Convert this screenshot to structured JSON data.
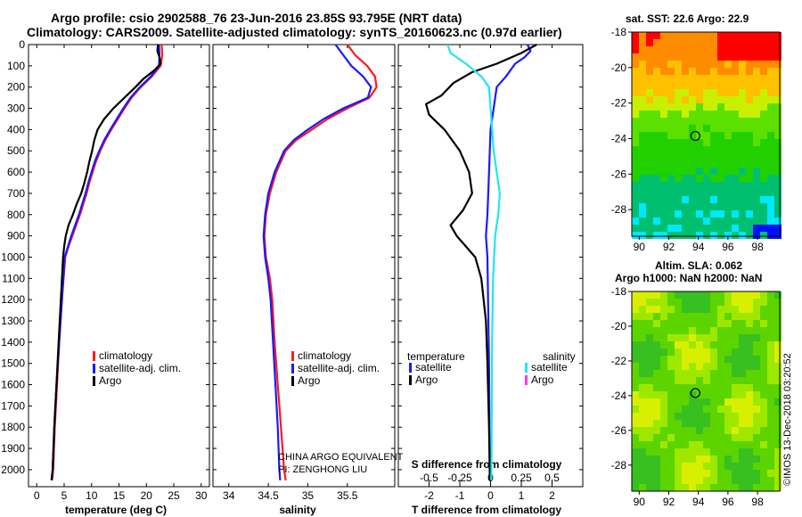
{
  "header": {
    "line1": "Argo profile: csio 2902588_76 23-Jun-2016 23.85S 93.795E (NRT data)",
    "line2": "Climatology: CARS2009. Satellite-adjusted climatology: synTS_20160623.nc (0.97d earlier)"
  },
  "colors": {
    "climatology": "#ff1a1a",
    "satellite": "#1a1aff",
    "argo": "#000000",
    "sat_salinity": "#22e5ee",
    "argo_salinity": "#ff33ff"
  },
  "chart_data": [
    {
      "id": "temperature",
      "type": "line",
      "xlabel": "temperature (deg C)",
      "ylabel": "",
      "xlim": [
        -1.5,
        31.5
      ],
      "ylim": [
        2080,
        0
      ],
      "xticks": [
        0,
        5,
        10,
        15,
        20,
        25,
        30
      ],
      "yticks": [
        0,
        100,
        200,
        300,
        400,
        500,
        600,
        700,
        800,
        900,
        1000,
        1100,
        1200,
        1300,
        1400,
        1500,
        1600,
        1700,
        1800,
        1900,
        2000
      ],
      "legend": {
        "items": [
          "climatology",
          "satellite-adj. clim.",
          "Argo"
        ]
      },
      "series": [
        {
          "name": "climatology",
          "color": "#ff1a1a",
          "points": [
            [
              22.8,
              0
            ],
            [
              22.9,
              50
            ],
            [
              22.6,
              100
            ],
            [
              21,
              150
            ],
            [
              19,
              200
            ],
            [
              17.3,
              250
            ],
            [
              16,
              300
            ],
            [
              14.8,
              350
            ],
            [
              13.6,
              400
            ],
            [
              12.5,
              450
            ],
            [
              11.6,
              500
            ],
            [
              10.8,
              550
            ],
            [
              10.2,
              600
            ],
            [
              9.6,
              650
            ],
            [
              9.1,
              700
            ],
            [
              8.5,
              750
            ],
            [
              7.9,
              800
            ],
            [
              7.2,
              850
            ],
            [
              6.5,
              900
            ],
            [
              5.8,
              950
            ],
            [
              5.2,
              1000
            ],
            [
              4.6,
              1200
            ],
            [
              4.1,
              1400
            ],
            [
              3.7,
              1600
            ],
            [
              3.3,
              1800
            ],
            [
              3,
              2000
            ],
            [
              2.8,
              2050
            ]
          ]
        },
        {
          "name": "satellite-adj. clim.",
          "color": "#1a1aff",
          "points": [
            [
              22.3,
              0
            ],
            [
              22.4,
              50
            ],
            [
              22.3,
              100
            ],
            [
              20.8,
              150
            ],
            [
              18.8,
              200
            ],
            [
              17.1,
              250
            ],
            [
              15.8,
              300
            ],
            [
              14.6,
              350
            ],
            [
              13.4,
              400
            ],
            [
              12.3,
              450
            ],
            [
              11.4,
              500
            ],
            [
              10.6,
              550
            ],
            [
              10,
              600
            ],
            [
              9.4,
              650
            ],
            [
              8.9,
              700
            ],
            [
              8.3,
              750
            ],
            [
              7.7,
              800
            ],
            [
              7,
              850
            ],
            [
              6.3,
              900
            ],
            [
              5.7,
              950
            ],
            [
              5.1,
              1000
            ],
            [
              4.6,
              1200
            ],
            [
              4.1,
              1400
            ],
            [
              3.6,
              1600
            ],
            [
              3.2,
              1800
            ],
            [
              2.9,
              2000
            ],
            [
              2.7,
              2050
            ]
          ]
        },
        {
          "name": "Argo",
          "color": "#000000",
          "points": [
            [
              22.1,
              0
            ],
            [
              22,
              30
            ],
            [
              22.4,
              60
            ],
            [
              22.6,
              90
            ],
            [
              21.5,
              120
            ],
            [
              19.5,
              160
            ],
            [
              18,
              200
            ],
            [
              16,
              250
            ],
            [
              14,
              300
            ],
            [
              12.3,
              350
            ],
            [
              11.1,
              400
            ],
            [
              10.5,
              450
            ],
            [
              10.1,
              500
            ],
            [
              9.6,
              550
            ],
            [
              9.2,
              600
            ],
            [
              8.7,
              650
            ],
            [
              8.1,
              700
            ],
            [
              7.3,
              750
            ],
            [
              6.6,
              800
            ],
            [
              5.8,
              850
            ],
            [
              5.3,
              900
            ],
            [
              5,
              950
            ],
            [
              4.8,
              1000
            ],
            [
              4.4,
              1200
            ],
            [
              4,
              1400
            ],
            [
              3.6,
              1600
            ],
            [
              3.2,
              1800
            ],
            [
              2.9,
              2000
            ],
            [
              2.7,
              2050
            ]
          ]
        }
      ]
    },
    {
      "id": "salinity",
      "type": "line",
      "xlabel": "salinity",
      "ylabel": "",
      "xlim": [
        33.8,
        36.1
      ],
      "ylim": [
        2080,
        0
      ],
      "xticks": [
        34,
        34.5,
        35,
        35.5
      ],
      "legend": {
        "items": [
          "climatology",
          "satellite-adj. clim.",
          "Argo"
        ]
      },
      "annotations": [
        "CHINA ARGO EQUIVALENT",
        "PI: ZENGHONG LIU"
      ],
      "series": [
        {
          "name": "climatology",
          "color": "#ff1a1a",
          "points": [
            [
              35.5,
              0
            ],
            [
              35.6,
              50
            ],
            [
              35.75,
              100
            ],
            [
              35.85,
              150
            ],
            [
              35.87,
              200
            ],
            [
              35.78,
              250
            ],
            [
              35.5,
              300
            ],
            [
              35.25,
              350
            ],
            [
              35.05,
              400
            ],
            [
              34.85,
              450
            ],
            [
              34.72,
              500
            ],
            [
              34.6,
              600
            ],
            [
              34.52,
              700
            ],
            [
              34.47,
              800
            ],
            [
              34.45,
              900
            ],
            [
              34.47,
              1000
            ],
            [
              34.52,
              1100
            ],
            [
              34.55,
              1200
            ],
            [
              34.58,
              1400
            ],
            [
              34.62,
              1600
            ],
            [
              34.66,
              1800
            ],
            [
              34.7,
              2000
            ],
            [
              34.72,
              2050
            ]
          ]
        },
        {
          "name": "satellite-adj. clim.",
          "color": "#1a1aff",
          "points": [
            [
              35.35,
              0
            ],
            [
              35.45,
              50
            ],
            [
              35.55,
              100
            ],
            [
              35.7,
              150
            ],
            [
              35.8,
              200
            ],
            [
              35.76,
              250
            ],
            [
              35.45,
              300
            ],
            [
              35.2,
              350
            ],
            [
              35.0,
              400
            ],
            [
              34.82,
              450
            ],
            [
              34.7,
              500
            ],
            [
              34.58,
              600
            ],
            [
              34.5,
              700
            ],
            [
              34.46,
              800
            ],
            [
              34.44,
              900
            ],
            [
              34.46,
              1000
            ],
            [
              34.5,
              1100
            ],
            [
              34.53,
              1200
            ],
            [
              34.56,
              1400
            ],
            [
              34.59,
              1600
            ],
            [
              34.62,
              1800
            ],
            [
              34.64,
              2000
            ],
            [
              34.65,
              2050
            ]
          ]
        },
        {
          "name": "Argo",
          "color": "#000000",
          "points": []
        }
      ]
    },
    {
      "id": "differences",
      "type": "line",
      "xlabel": "T difference from climatology",
      "xlabel_top": "S difference from climatology",
      "xlim": [
        -3,
        3
      ],
      "ylim": [
        2080,
        0
      ],
      "xticks": [
        -2,
        -1,
        0,
        1,
        2
      ],
      "xticks_salinity": [
        "-0.5",
        "-0.25",
        "0",
        "0.25",
        "0.5"
      ],
      "legend_temperature": {
        "title": "temperature",
        "items": [
          "satellite",
          "Argo"
        ]
      },
      "legend_salinity": {
        "title": "salinity",
        "items": [
          "satellite",
          "Argo"
        ]
      },
      "series": [
        {
          "name": "temperature satellite",
          "color": "#1a1aff",
          "points": [
            [
              1.2,
              0
            ],
            [
              1.3,
              30
            ],
            [
              1.1,
              60
            ],
            [
              0.8,
              90
            ],
            [
              0.5,
              150
            ],
            [
              0.2,
              200
            ],
            [
              0.1,
              300
            ],
            [
              0,
              400
            ],
            [
              -0.05,
              600
            ],
            [
              -0.1,
              800
            ],
            [
              -0.15,
              900
            ],
            [
              -0.1,
              1000
            ],
            [
              -0.08,
              1200
            ],
            [
              -0.05,
              1500
            ],
            [
              -0.03,
              2000
            ],
            [
              -0.02,
              2050
            ]
          ]
        },
        {
          "name": "temperature Argo",
          "color": "#000000",
          "points": [
            [
              1.5,
              0
            ],
            [
              1,
              40
            ],
            [
              0.2,
              90
            ],
            [
              -0.6,
              130
            ],
            [
              -1.2,
              180
            ],
            [
              -1.6,
              240
            ],
            [
              -2.1,
              280
            ],
            [
              -2,
              330
            ],
            [
              -1.5,
              400
            ],
            [
              -1,
              500
            ],
            [
              -0.7,
              600
            ],
            [
              -0.6,
              700
            ],
            [
              -0.9,
              780
            ],
            [
              -1.3,
              850
            ],
            [
              -1.1,
              900
            ],
            [
              -0.5,
              1000
            ],
            [
              -0.3,
              1100
            ],
            [
              -0.15,
              1300
            ],
            [
              -0.1,
              1500
            ],
            [
              -0.05,
              1800
            ],
            [
              -0.02,
              2050
            ]
          ]
        },
        {
          "name": "salinity satellite",
          "color": "#22e5ee",
          "points": [
            [
              -1.4,
              0
            ],
            [
              -1.3,
              40
            ],
            [
              -0.8,
              90
            ],
            [
              -0.3,
              150
            ],
            [
              -0.05,
              200
            ],
            [
              0,
              300
            ],
            [
              0.1,
              500
            ],
            [
              0.2,
              600
            ],
            [
              0.3,
              700
            ],
            [
              0.25,
              800
            ],
            [
              0.15,
              900
            ],
            [
              0.08,
              1100
            ],
            [
              0.05,
              1400
            ],
            [
              0.03,
              2000
            ],
            [
              0.02,
              2050
            ]
          ]
        },
        {
          "name": "salinity Argo",
          "color": "#ff33ff",
          "points": []
        }
      ]
    },
    {
      "id": "sst_map",
      "type": "heatmap",
      "title": "sat. SST: 22.6 Argo: 22.9",
      "xlim": [
        89.5,
        99.5
      ],
      "ylim": [
        -29.5,
        -18
      ],
      "xticks": [
        90,
        92,
        94,
        96,
        98
      ],
      "yticks": [
        -18,
        -20,
        -22,
        -24,
        -26,
        -28
      ],
      "marker": {
        "lon": 93.795,
        "lat": -23.85
      }
    },
    {
      "id": "sla_map",
      "type": "heatmap",
      "title_line1": "Altim. SLA: 0.062",
      "title_line2": "Argo h1000: NaN h2000: NaN",
      "xlim": [
        89.5,
        99.5
      ],
      "ylim": [
        -29.5,
        -18
      ],
      "xticks": [
        90,
        92,
        94,
        96,
        98
      ],
      "yticks": [
        -18,
        -20,
        -22,
        -24,
        -26,
        -28
      ],
      "marker": {
        "lon": 93.795,
        "lat": -23.85
      }
    }
  ],
  "footer": {
    "stamp": "©IMOS 13-Dec-2018 03:20:52"
  }
}
